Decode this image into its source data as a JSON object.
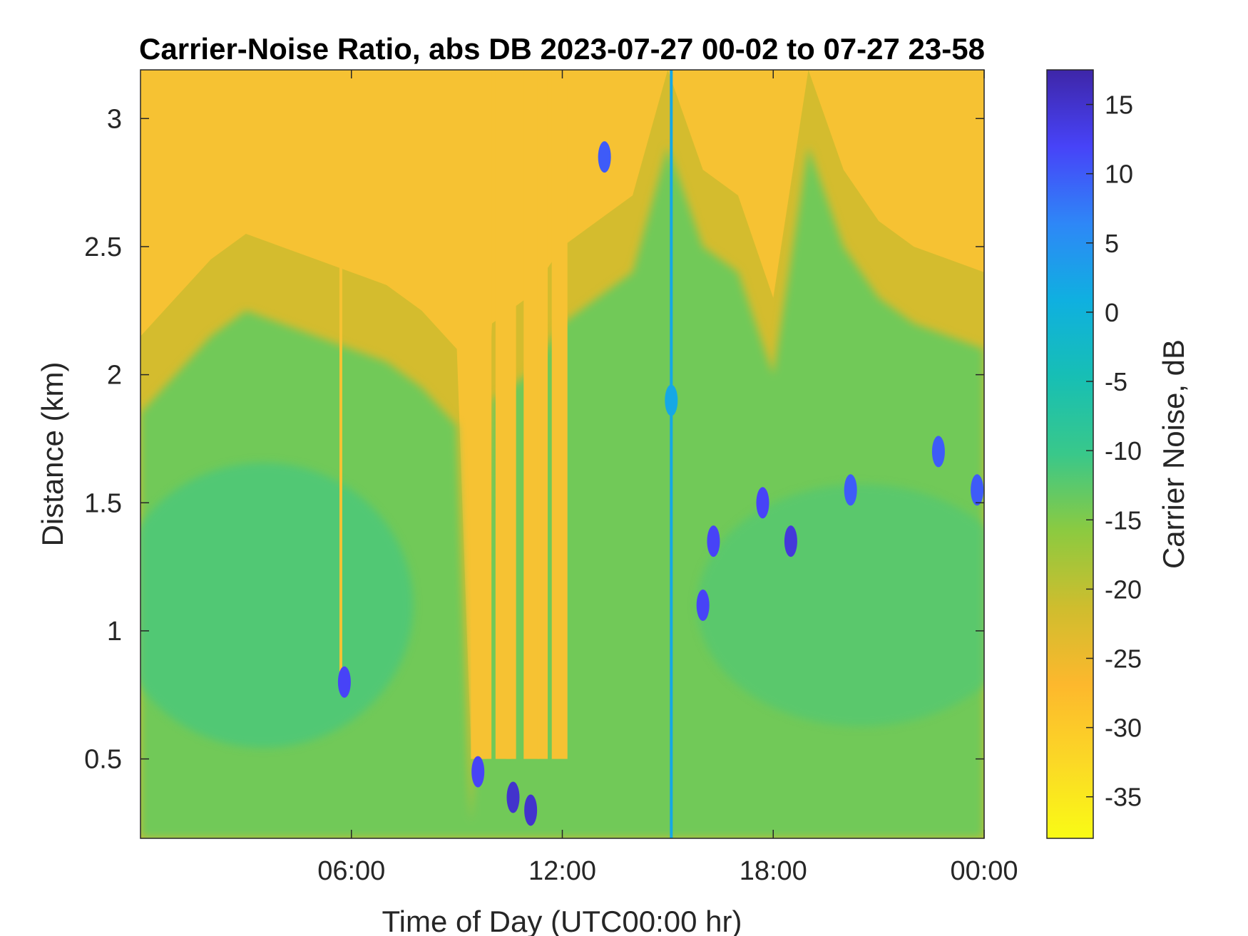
{
  "chart_data": {
    "type": "heatmap",
    "title": "Carrier-Noise Ratio, abs DB 2023-07-27 00-02 to 07-27 23-58",
    "xlabel": "Time of Day (UTC00:00 hr)",
    "ylabel": "Distance (km)",
    "xlim": [
      0,
      24
    ],
    "ylim": [
      0.19,
      3.19
    ],
    "xticks": [
      6,
      12,
      18,
      24
    ],
    "xtick_labels": [
      "06:00",
      "12:00",
      "18:00",
      "00:00"
    ],
    "yticks": [
      0.5,
      1,
      1.5,
      2,
      2.5,
      3
    ],
    "ytick_labels": [
      "0.5",
      "1",
      "1.5",
      "2",
      "2.5",
      "3"
    ],
    "colorbar": {
      "label": "Carrier Noise, dB",
      "clim": [
        -38,
        17.5
      ],
      "ticks": [
        15,
        10,
        5,
        0,
        -5,
        -10,
        -15,
        -20,
        -25,
        -30,
        -35
      ],
      "tick_labels": [
        "15",
        "10",
        "5",
        "0",
        "-5",
        "-10",
        "-15",
        "-20",
        "-25",
        "-30",
        "-35"
      ],
      "colormap": "parula (reversed)",
      "colors_high_to_low": [
        "#3e26a8",
        "#4743f8",
        "#2e87f7",
        "#0fb0e0",
        "#17bfb4",
        "#39c88a",
        "#8cca40",
        "#cfbd2e",
        "#fdb82d",
        "#fbd826",
        "#f9fb15"
      ]
    },
    "boundary_profile": {
      "description_units": "time (hours) vs distance (km) where signal fades to noise floor",
      "x": [
        0,
        1,
        2,
        3,
        4,
        5,
        6,
        7,
        8,
        9,
        9.4,
        10,
        11,
        12,
        13,
        14,
        15,
        16,
        17,
        18,
        19,
        20,
        21,
        22,
        23,
        24
      ],
      "y": [
        2.15,
        2.3,
        2.45,
        2.55,
        2.5,
        2.45,
        2.4,
        2.35,
        2.25,
        2.1,
        0.55,
        2.2,
        2.3,
        2.5,
        2.6,
        2.7,
        3.19,
        2.8,
        2.7,
        2.3,
        3.19,
        2.8,
        2.6,
        2.5,
        2.45,
        2.4
      ]
    },
    "noise_floor_db": -30,
    "signal_range_db": [
      -20,
      -8
    ],
    "strong_returns": [
      {
        "x": 5.8,
        "y": 0.8,
        "db": 12
      },
      {
        "x": 9.6,
        "y": 0.45,
        "db": 12
      },
      {
        "x": 10.6,
        "y": 0.35,
        "db": 15
      },
      {
        "x": 11.1,
        "y": 0.3,
        "db": 15
      },
      {
        "x": 13.2,
        "y": 2.85,
        "db": 10
      },
      {
        "x": 15.1,
        "y": 1.9,
        "db": 2
      },
      {
        "x": 16.0,
        "y": 1.1,
        "db": 12
      },
      {
        "x": 16.3,
        "y": 1.35,
        "db": 12
      },
      {
        "x": 17.7,
        "y": 1.5,
        "db": 12
      },
      {
        "x": 18.5,
        "y": 1.35,
        "db": 14
      },
      {
        "x": 20.2,
        "y": 1.55,
        "db": 10
      },
      {
        "x": 22.7,
        "y": 1.7,
        "db": 10
      },
      {
        "x": 23.8,
        "y": 1.55,
        "db": 10
      }
    ]
  }
}
